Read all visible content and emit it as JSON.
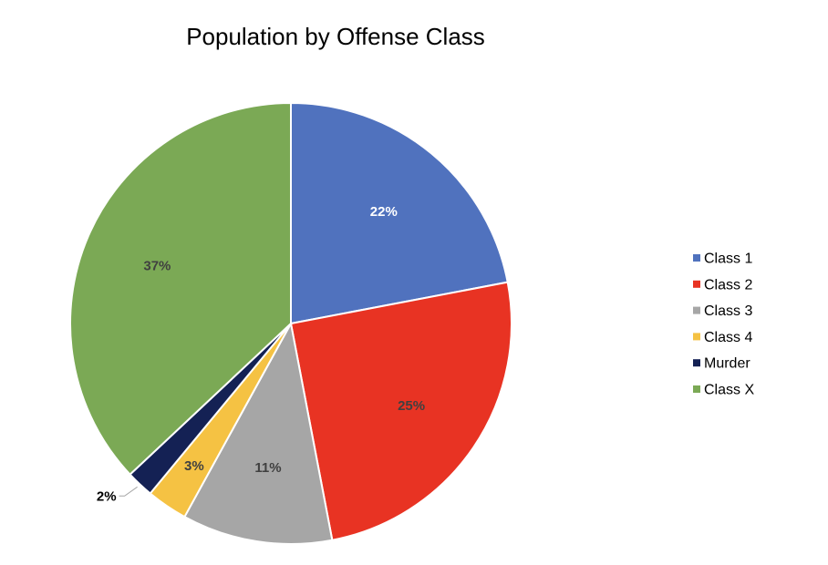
{
  "chart_data": {
    "type": "pie",
    "title": "Population by Offense Class",
    "legend_position": "right",
    "start_angle_deg": 0,
    "direction": "clockwise",
    "slices": [
      {
        "name": "Class 1",
        "value": 22,
        "label": "22%",
        "color": "#5072BE",
        "label_color": "#FFFFFF"
      },
      {
        "name": "Class 2",
        "value": 25,
        "label": "25%",
        "color": "#E83323",
        "label_color": "#404040"
      },
      {
        "name": "Class 3",
        "value": 11,
        "label": "11%",
        "color": "#A6A6A6",
        "label_color": "#404040"
      },
      {
        "name": "Class 4",
        "value": 3,
        "label": "3%",
        "color": "#F5C243",
        "label_color": "#404040"
      },
      {
        "name": "Murder",
        "value": 2,
        "label": "2%",
        "color": "#142154",
        "label_color": "#000000",
        "label_outside": true
      },
      {
        "name": "Class X",
        "value": 37,
        "label": "37%",
        "color": "#7BA955",
        "label_color": "#404040"
      }
    ]
  }
}
